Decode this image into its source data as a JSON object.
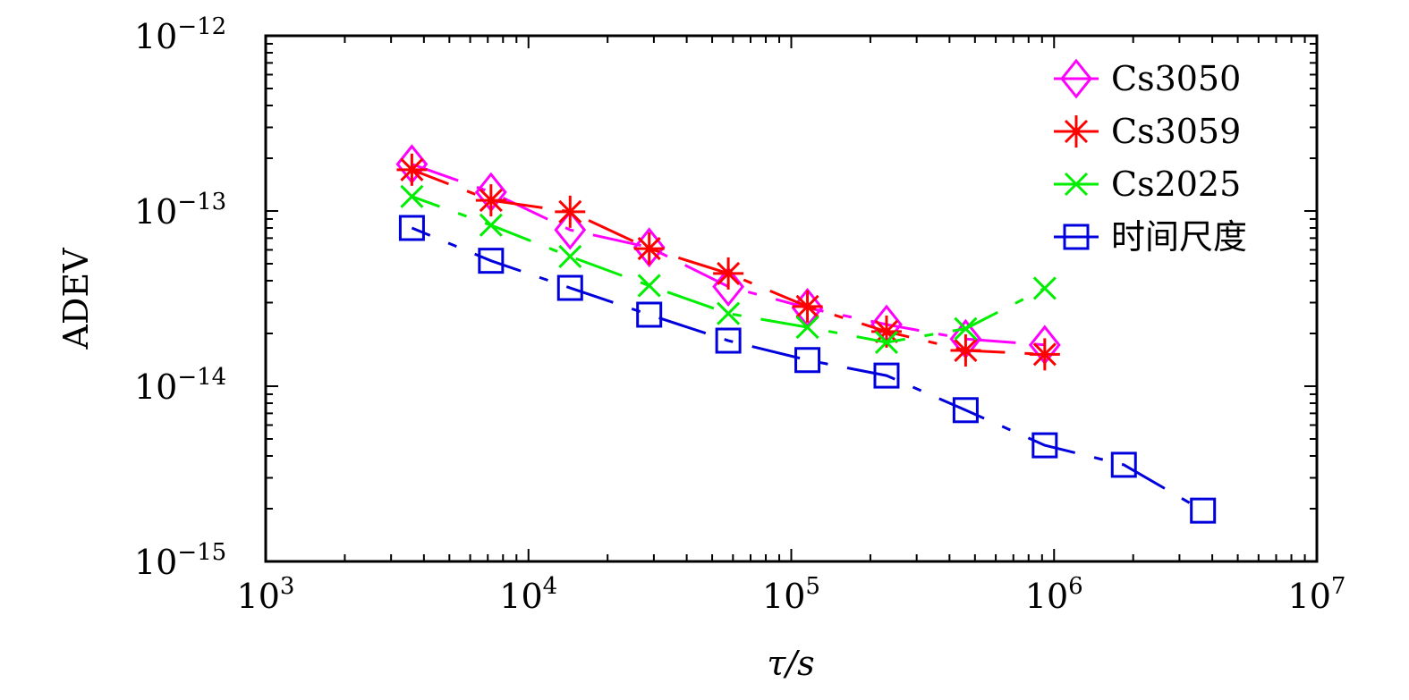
{
  "chart_data": {
    "type": "line",
    "title": "",
    "xlabel": "τ/s",
    "ylabel": "ADEV",
    "xscale": "log",
    "yscale": "log",
    "xlim": [
      1000,
      10000000
    ],
    "ylim": [
      1e-15,
      1e-12
    ],
    "x_ticks": [
      {
        "value": 1000,
        "base": "10",
        "exp": "3"
      },
      {
        "value": 10000,
        "base": "10",
        "exp": "4"
      },
      {
        "value": 100000,
        "base": "10",
        "exp": "5"
      },
      {
        "value": 1000000,
        "base": "10",
        "exp": "6"
      },
      {
        "value": 10000000,
        "base": "10",
        "exp": "7"
      }
    ],
    "y_ticks": [
      {
        "value": 1e-15,
        "base": "10",
        "exp": "−15"
      },
      {
        "value": 1e-14,
        "base": "10",
        "exp": "−14"
      },
      {
        "value": 1e-13,
        "base": "10",
        "exp": "−13"
      },
      {
        "value": 1e-12,
        "base": "10",
        "exp": "−12"
      }
    ],
    "grid": false,
    "legend_position": "top-right",
    "series": [
      {
        "name": "Cs3050",
        "color": "#ff00ff",
        "marker": "diamond",
        "x": [
          3600,
          7200,
          14400,
          28800,
          57600,
          115200,
          230400,
          460800,
          921600
        ],
        "y": [
          1.85e-13,
          1.28e-13,
          7.8e-14,
          6.2e-14,
          3.7e-14,
          2.8e-14,
          2.25e-14,
          1.86e-14,
          1.72e-14
        ]
      },
      {
        "name": "Cs3059",
        "color": "#ff0000",
        "marker": "asterisk",
        "x": [
          3600,
          7200,
          14400,
          28800,
          57600,
          115200,
          230400,
          460800,
          921600
        ],
        "y": [
          1.72e-13,
          1.15e-13,
          9.9e-14,
          6.1e-14,
          4.4e-14,
          2.85e-14,
          2.05e-14,
          1.6e-14,
          1.52e-14
        ]
      },
      {
        "name": "Cs2025",
        "color": "#00ee00",
        "marker": "x",
        "x": [
          3600,
          7200,
          14400,
          28800,
          57600,
          115200,
          230400,
          460800,
          921600
        ],
        "y": [
          1.21e-13,
          8.3e-14,
          5.5e-14,
          3.75e-14,
          2.6e-14,
          2.17e-14,
          1.78e-14,
          2.13e-14,
          3.62e-14
        ]
      },
      {
        "name": "时间尺度",
        "color": "#0000dd",
        "marker": "square",
        "x": [
          3600,
          7200,
          14400,
          28800,
          57600,
          115200,
          230400,
          460800,
          921600,
          1843200,
          3686400
        ],
        "y": [
          8e-14,
          5.2e-14,
          3.64e-14,
          2.56e-14,
          1.82e-14,
          1.41e-14,
          1.15e-14,
          7.3e-15,
          4.6e-15,
          3.56e-15,
          1.95e-15
        ]
      }
    ]
  }
}
